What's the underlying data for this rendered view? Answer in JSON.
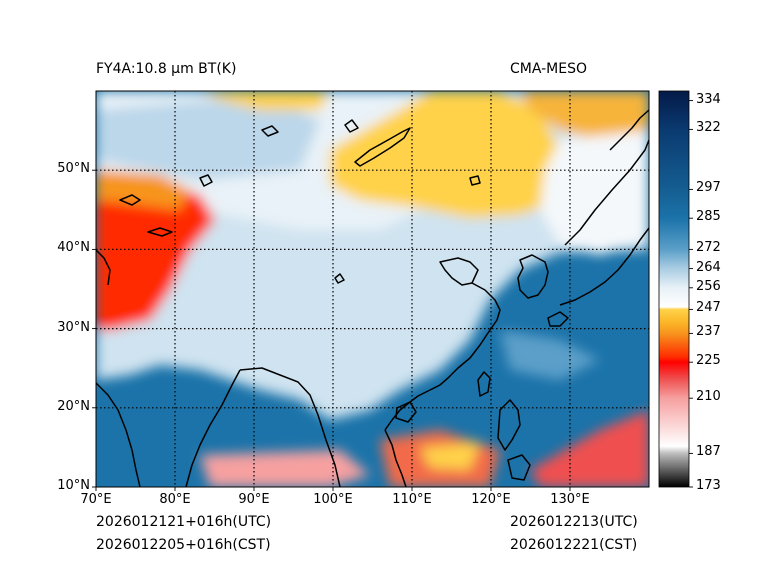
{
  "title_left": "FY4A:10.8 µm BT(K)",
  "title_right": "CMA-MESO",
  "footer": {
    "left_line1": "2026012121+016h(UTC)",
    "left_line2": "2026012205+016h(CST)",
    "right_line1": "2026012213(UTC)",
    "right_line2": "2026012221(CST)"
  },
  "map": {
    "lon_range": [
      70,
      140
    ],
    "lat_range": [
      10,
      60
    ],
    "lon_ticks": [
      {
        "value": 70,
        "label": "70°E"
      },
      {
        "value": 80,
        "label": "80°E"
      },
      {
        "value": 90,
        "label": "90°E"
      },
      {
        "value": 100,
        "label": "100°E"
      },
      {
        "value": 110,
        "label": "110°E"
      },
      {
        "value": 120,
        "label": "120°E"
      },
      {
        "value": 130,
        "label": "130°E"
      }
    ],
    "lat_ticks": [
      {
        "value": 10,
        "label": "10°N"
      },
      {
        "value": 20,
        "label": "20°N"
      },
      {
        "value": 30,
        "label": "30°N"
      },
      {
        "value": 40,
        "label": "40°N"
      },
      {
        "value": 50,
        "label": "50°N"
      }
    ]
  },
  "colorbar": {
    "range": [
      173,
      338
    ],
    "ticks": [
      334,
      322,
      297,
      285,
      272,
      264,
      256,
      247,
      237,
      225,
      210,
      187,
      173
    ],
    "stops": [
      {
        "v": 173,
        "c": "#000000"
      },
      {
        "v": 187,
        "c": "#bdbdbd"
      },
      {
        "v": 190,
        "c": "#ffffff"
      },
      {
        "v": 210,
        "c": "#f6a0a0"
      },
      {
        "v": 218,
        "c": "#ef5050"
      },
      {
        "v": 225,
        "c": "#ff0000"
      },
      {
        "v": 227,
        "c": "#ff2a00"
      },
      {
        "v": 237,
        "c": "#f7941d"
      },
      {
        "v": 242,
        "c": "#fbb829"
      },
      {
        "v": 247,
        "c": "#ffd24a"
      },
      {
        "v": 248,
        "c": "#ffffff"
      },
      {
        "v": 256,
        "c": "#e8f1f7"
      },
      {
        "v": 264,
        "c": "#aacde3"
      },
      {
        "v": 272,
        "c": "#5b9fc9"
      },
      {
        "v": 285,
        "c": "#1b73a9"
      },
      {
        "v": 297,
        "c": "#155e92"
      },
      {
        "v": 322,
        "c": "#0a3a70"
      },
      {
        "v": 338,
        "c": "#041a48"
      }
    ]
  },
  "colors": {
    "cold_cloud": "#ffd24a",
    "deep_convection": "#ff2a00",
    "ocean": "#1b73a9",
    "land_cool": "#cfe3f0"
  }
}
